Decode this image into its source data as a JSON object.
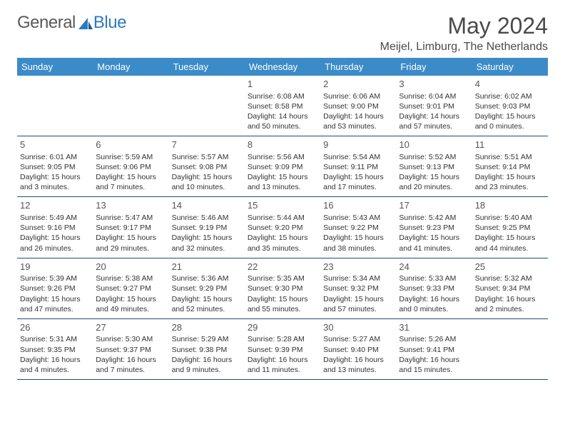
{
  "logo": {
    "text1": "General",
    "text2": "Blue"
  },
  "title": "May 2024",
  "location": "Meijel, Limburg, The Netherlands",
  "colors": {
    "header_bar": "#3b8bc9",
    "week_divider": "#1f4e79",
    "logo_gray": "#5a5a5a",
    "logo_blue": "#2b7bbf",
    "text_dark": "#4a4a4a"
  },
  "dow": [
    "Sunday",
    "Monday",
    "Tuesday",
    "Wednesday",
    "Thursday",
    "Friday",
    "Saturday"
  ],
  "weeks": [
    [
      null,
      null,
      null,
      {
        "n": "1",
        "sr": "6:08 AM",
        "ss": "8:58 PM",
        "dh": "14",
        "dm": "50"
      },
      {
        "n": "2",
        "sr": "6:06 AM",
        "ss": "9:00 PM",
        "dh": "14",
        "dm": "53"
      },
      {
        "n": "3",
        "sr": "6:04 AM",
        "ss": "9:01 PM",
        "dh": "14",
        "dm": "57"
      },
      {
        "n": "4",
        "sr": "6:02 AM",
        "ss": "9:03 PM",
        "dh": "15",
        "dm": "0"
      }
    ],
    [
      {
        "n": "5",
        "sr": "6:01 AM",
        "ss": "9:05 PM",
        "dh": "15",
        "dm": "3"
      },
      {
        "n": "6",
        "sr": "5:59 AM",
        "ss": "9:06 PM",
        "dh": "15",
        "dm": "7"
      },
      {
        "n": "7",
        "sr": "5:57 AM",
        "ss": "9:08 PM",
        "dh": "15",
        "dm": "10"
      },
      {
        "n": "8",
        "sr": "5:56 AM",
        "ss": "9:09 PM",
        "dh": "15",
        "dm": "13"
      },
      {
        "n": "9",
        "sr": "5:54 AM",
        "ss": "9:11 PM",
        "dh": "15",
        "dm": "17"
      },
      {
        "n": "10",
        "sr": "5:52 AM",
        "ss": "9:13 PM",
        "dh": "15",
        "dm": "20"
      },
      {
        "n": "11",
        "sr": "5:51 AM",
        "ss": "9:14 PM",
        "dh": "15",
        "dm": "23"
      }
    ],
    [
      {
        "n": "12",
        "sr": "5:49 AM",
        "ss": "9:16 PM",
        "dh": "15",
        "dm": "26"
      },
      {
        "n": "13",
        "sr": "5:47 AM",
        "ss": "9:17 PM",
        "dh": "15",
        "dm": "29"
      },
      {
        "n": "14",
        "sr": "5:46 AM",
        "ss": "9:19 PM",
        "dh": "15",
        "dm": "32"
      },
      {
        "n": "15",
        "sr": "5:44 AM",
        "ss": "9:20 PM",
        "dh": "15",
        "dm": "35"
      },
      {
        "n": "16",
        "sr": "5:43 AM",
        "ss": "9:22 PM",
        "dh": "15",
        "dm": "38"
      },
      {
        "n": "17",
        "sr": "5:42 AM",
        "ss": "9:23 PM",
        "dh": "15",
        "dm": "41"
      },
      {
        "n": "18",
        "sr": "5:40 AM",
        "ss": "9:25 PM",
        "dh": "15",
        "dm": "44"
      }
    ],
    [
      {
        "n": "19",
        "sr": "5:39 AM",
        "ss": "9:26 PM",
        "dh": "15",
        "dm": "47"
      },
      {
        "n": "20",
        "sr": "5:38 AM",
        "ss": "9:27 PM",
        "dh": "15",
        "dm": "49"
      },
      {
        "n": "21",
        "sr": "5:36 AM",
        "ss": "9:29 PM",
        "dh": "15",
        "dm": "52"
      },
      {
        "n": "22",
        "sr": "5:35 AM",
        "ss": "9:30 PM",
        "dh": "15",
        "dm": "55"
      },
      {
        "n": "23",
        "sr": "5:34 AM",
        "ss": "9:32 PM",
        "dh": "15",
        "dm": "57"
      },
      {
        "n": "24",
        "sr": "5:33 AM",
        "ss": "9:33 PM",
        "dh": "16",
        "dm": "0"
      },
      {
        "n": "25",
        "sr": "5:32 AM",
        "ss": "9:34 PM",
        "dh": "16",
        "dm": "2"
      }
    ],
    [
      {
        "n": "26",
        "sr": "5:31 AM",
        "ss": "9:35 PM",
        "dh": "16",
        "dm": "4"
      },
      {
        "n": "27",
        "sr": "5:30 AM",
        "ss": "9:37 PM",
        "dh": "16",
        "dm": "7"
      },
      {
        "n": "28",
        "sr": "5:29 AM",
        "ss": "9:38 PM",
        "dh": "16",
        "dm": "9"
      },
      {
        "n": "29",
        "sr": "5:28 AM",
        "ss": "9:39 PM",
        "dh": "16",
        "dm": "11"
      },
      {
        "n": "30",
        "sr": "5:27 AM",
        "ss": "9:40 PM",
        "dh": "16",
        "dm": "13"
      },
      {
        "n": "31",
        "sr": "5:26 AM",
        "ss": "9:41 PM",
        "dh": "16",
        "dm": "15"
      },
      null
    ]
  ],
  "labels": {
    "sunrise": "Sunrise:",
    "sunset": "Sunset:",
    "daylight": "Daylight:",
    "hours": "hours",
    "and": "and",
    "minutes": "minutes."
  }
}
